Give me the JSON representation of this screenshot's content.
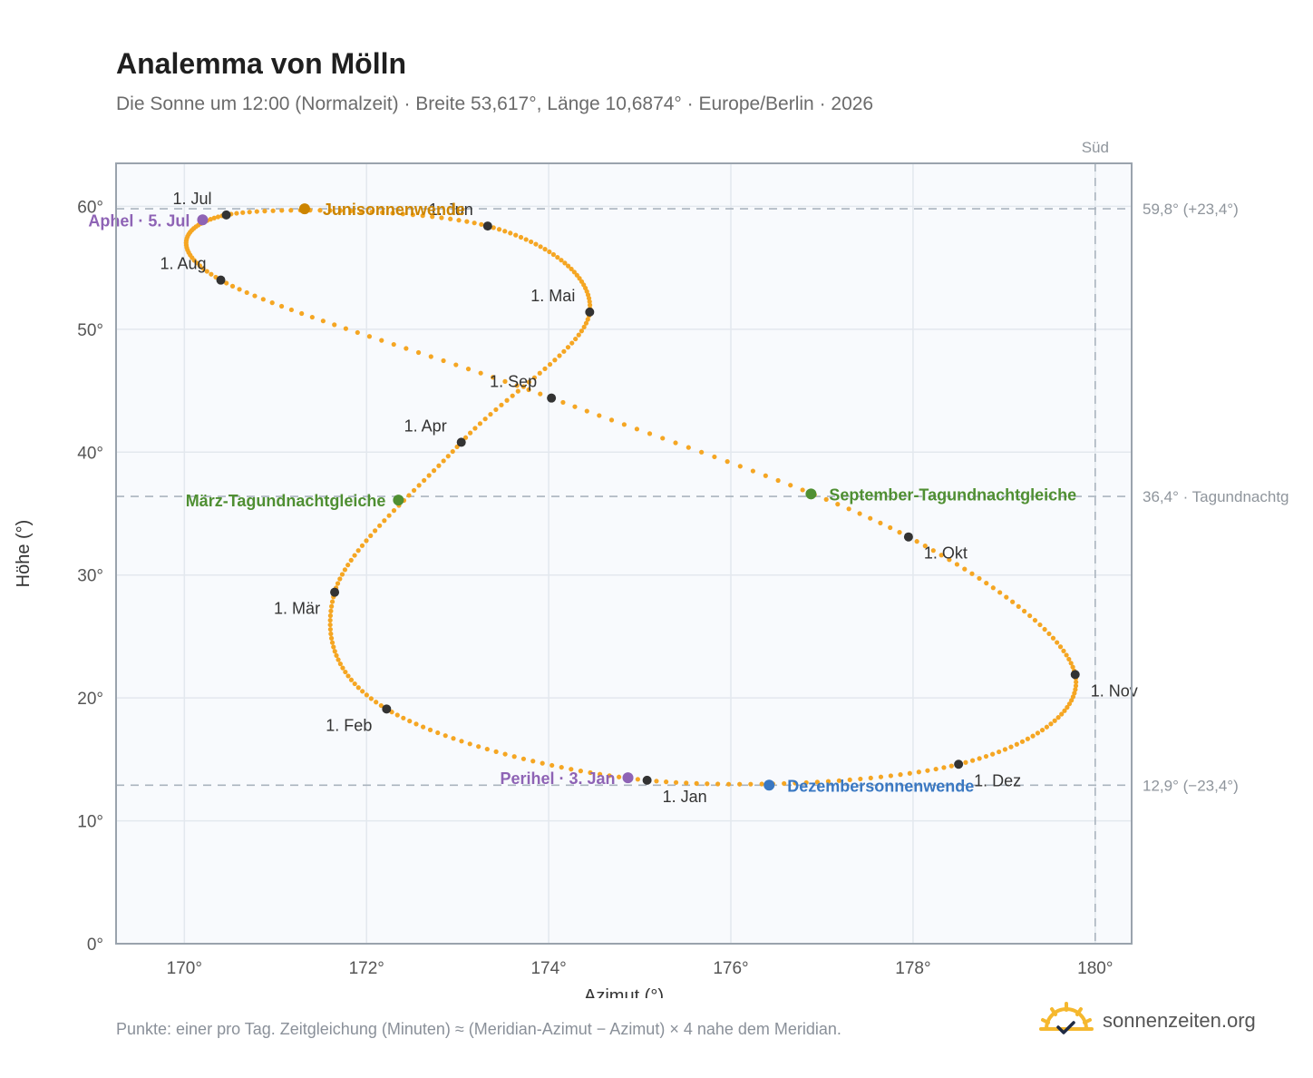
{
  "header": {
    "title": "Analemma von Mölln",
    "subtitle": "Die Sonne um 12:00 (Normalzeit) · Breite 53,617°, Länge 10,6874° · Europe/Berlin · 2026"
  },
  "footer": {
    "note": "Punkte: einer pro Tag. Zeitgleichung (Minuten) ≈ (Meridian-Azimut − Azimut) × 4 nahe dem Meridian.",
    "brand": "sonnenzeiten.org"
  },
  "colors": {
    "curve": "#f5a623",
    "marker": "#333333",
    "aphel_perihel": "#8e63b5",
    "june": "#cc8400",
    "equinox": "#4f8f32",
    "december": "#3a78c2",
    "grid": "#e3e8ee",
    "plot_bg": "#f8fafd",
    "frame": "#9aa3ad",
    "ref_line": "#aab4be"
  },
  "chart_data": {
    "type": "scatter",
    "xlabel": "Azimut (°)",
    "ylabel": "Höhe (°)",
    "xlim": [
      169.25,
      180.4
    ],
    "ylim": [
      0,
      63.5
    ],
    "x_ticks": [
      {
        "value": 170,
        "label": "170°"
      },
      {
        "value": 172,
        "label": "172°"
      },
      {
        "value": 174,
        "label": "174°"
      },
      {
        "value": 176,
        "label": "176°"
      },
      {
        "value": 178,
        "label": "178°"
      },
      {
        "value": 180,
        "label": "180°"
      }
    ],
    "y_ticks": [
      {
        "value": 0,
        "label": "0°"
      },
      {
        "value": 10,
        "label": "10°"
      },
      {
        "value": 20,
        "label": "20°"
      },
      {
        "value": 30,
        "label": "30°"
      },
      {
        "value": 40,
        "label": "40°"
      },
      {
        "value": 50,
        "label": "50°"
      },
      {
        "value": 60,
        "label": "60°"
      }
    ],
    "grid": true,
    "reference_lines": [
      {
        "orientation": "horizontal",
        "value": 59.8,
        "label": "59,8° (+23,4°)"
      },
      {
        "orientation": "horizontal",
        "value": 36.4,
        "label": "36,4° · Tagundnachtg"
      },
      {
        "orientation": "horizontal",
        "value": 12.9,
        "label": "12,9° (−23,4°)"
      },
      {
        "orientation": "vertical",
        "value": 180,
        "label": "Süd"
      }
    ],
    "curve_anchors": [
      {
        "x": 175.08,
        "y": 13.3
      },
      {
        "x": 172.22,
        "y": 19.1
      },
      {
        "x": 171.65,
        "y": 28.6
      },
      {
        "x": 173.04,
        "y": 40.8
      },
      {
        "x": 174.45,
        "y": 51.4
      },
      {
        "x": 173.33,
        "y": 58.4
      },
      {
        "x": 170.46,
        "y": 59.3
      },
      {
        "x": 170.4,
        "y": 54.0
      },
      {
        "x": 174.03,
        "y": 44.4
      },
      {
        "x": 177.95,
        "y": 33.1
      },
      {
        "x": 179.78,
        "y": 21.9
      },
      {
        "x": 178.5,
        "y": 14.6
      },
      {
        "x": 175.08,
        "y": 13.3
      }
    ],
    "month_markers": [
      {
        "label": "1. Jan",
        "x": 175.08,
        "y": 13.3,
        "label_pos": "below-right"
      },
      {
        "label": "1. Feb",
        "x": 172.22,
        "y": 19.1,
        "label_pos": "below-left"
      },
      {
        "label": "1. Mär",
        "x": 171.65,
        "y": 28.6,
        "label_pos": "below-left"
      },
      {
        "label": "1. Apr",
        "x": 173.04,
        "y": 40.8,
        "label_pos": "above-left"
      },
      {
        "label": "1. Mai",
        "x": 174.45,
        "y": 51.4,
        "label_pos": "above-left"
      },
      {
        "label": "1. Jun",
        "x": 173.33,
        "y": 58.4,
        "label_pos": "above-left"
      },
      {
        "label": "1. Jul",
        "x": 170.46,
        "y": 59.3,
        "label_pos": "above-left"
      },
      {
        "label": "1. Aug",
        "x": 170.4,
        "y": 54.0,
        "label_pos": "above-left"
      },
      {
        "label": "1. Sep",
        "x": 174.03,
        "y": 44.4,
        "label_pos": "above-left"
      },
      {
        "label": "1. Okt",
        "x": 177.95,
        "y": 33.1,
        "label_pos": "below-right"
      },
      {
        "label": "1. Nov",
        "x": 179.78,
        "y": 21.9,
        "label_pos": "below-right"
      },
      {
        "label": "1. Dez",
        "x": 178.5,
        "y": 14.6,
        "label_pos": "below-right"
      }
    ],
    "events": [
      {
        "label": "Aphel · 5. Jul",
        "x": 170.2,
        "y": 58.9,
        "color_key": "aphel_perihel",
        "label_pos": "left"
      },
      {
        "label": "Junisonnenwende",
        "x": 171.32,
        "y": 59.8,
        "color_key": "june",
        "label_pos": "right"
      },
      {
        "label": "März-Tagundnachtgleiche",
        "x": 172.35,
        "y": 36.1,
        "color_key": "equinox",
        "label_pos": "left"
      },
      {
        "label": "September-Tagundnachtgleiche",
        "x": 176.88,
        "y": 36.6,
        "color_key": "equinox",
        "label_pos": "right"
      },
      {
        "label": "Perihel · 3. Jan",
        "x": 174.87,
        "y": 13.5,
        "color_key": "aphel_perihel",
        "label_pos": "left"
      },
      {
        "label": "Dezembersonnenwende",
        "x": 176.42,
        "y": 12.9,
        "color_key": "december",
        "label_pos": "right"
      }
    ]
  }
}
